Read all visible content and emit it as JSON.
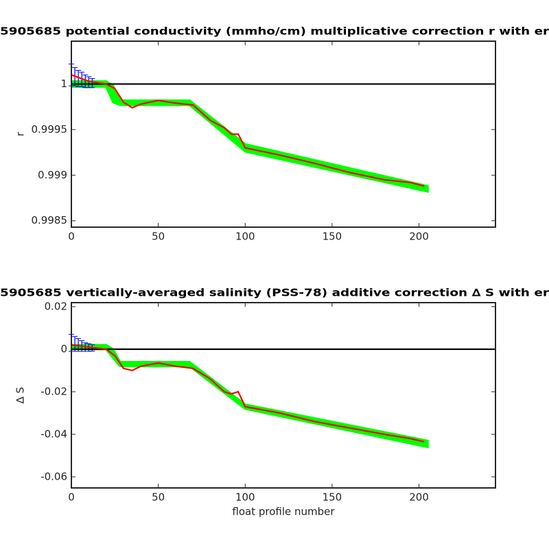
{
  "chart_data": [
    {
      "type": "line",
      "title": "5905685 potential conductivity (mmho/cm) multiplicative correction r with er",
      "ylabel": "r",
      "xlim": [
        0,
        244
      ],
      "xticks": [
        0,
        50,
        100,
        150,
        200
      ],
      "ylim": [
        0.99843,
        1.00047
      ],
      "yticks": [
        0.9985,
        0.999,
        0.9995,
        1
      ],
      "reference": 1,
      "reference_color": "#000000",
      "band": {
        "color": "#00ff00",
        "x": [
          0,
          20,
          24,
          28,
          68,
          100,
          205
        ],
        "upper": [
          1.00003,
          1.00003,
          0.99998,
          0.99982,
          0.99982,
          0.99934,
          0.99888
        ],
        "lower": [
          0.99997,
          0.99997,
          0.9998,
          0.99977,
          0.99977,
          0.99926,
          0.99882
        ]
      },
      "errorbars": {
        "color": "#0000ff",
        "x": [
          0,
          2,
          4,
          6,
          8,
          10,
          12
        ],
        "values": [
          1.0001,
          1.00008,
          1.00006,
          1.00005,
          1.00003,
          1.00002,
          1.00001
        ],
        "errors": [
          0.00012,
          0.0001,
          9e-05,
          8e-05,
          7e-05,
          6e-05,
          5e-05
        ]
      },
      "line": {
        "color": "#ff0000",
        "x": [
          0,
          10,
          20,
          25,
          30,
          35,
          40,
          50,
          60,
          70,
          80,
          88,
          92,
          96,
          100,
          120,
          140,
          160,
          180,
          195,
          203
        ],
        "values": [
          1.0001,
          1.00003,
          1.0,
          0.99995,
          0.9998,
          0.99974,
          0.99978,
          0.99982,
          0.99979,
          0.99977,
          0.9996,
          0.99952,
          0.99945,
          0.99945,
          0.9993,
          0.99922,
          0.99913,
          0.99903,
          0.99895,
          0.99892,
          0.99888
        ]
      }
    },
    {
      "type": "line",
      "title": "5905685 vertically-averaged salinity (PSS-78) additive correction ∆ S with er",
      "ylabel": "∆ S",
      "xlabel": "float profile number",
      "xlim": [
        0,
        244
      ],
      "xticks": [
        0,
        50,
        100,
        150,
        200
      ],
      "ylim": [
        -0.0652,
        0.0219
      ],
      "yticks": [
        -0.06,
        -0.04,
        -0.02,
        0,
        0.02
      ],
      "reference": 0,
      "reference_color": "#000000",
      "band": {
        "color": "#00ff00",
        "x": [
          0,
          20,
          24,
          28,
          68,
          100,
          205
        ],
        "upper": [
          0.002,
          0.002,
          0.0,
          -0.006,
          -0.006,
          -0.026,
          -0.043
        ],
        "lower": [
          0,
          0,
          -0.004,
          -0.008,
          -0.008,
          -0.028,
          -0.046
        ]
      },
      "errorbars": {
        "color": "#0000ff",
        "x": [
          0,
          2,
          4,
          6,
          8,
          10,
          12
        ],
        "values": [
          0.003,
          0.0025,
          0.002,
          0.0015,
          0.001,
          0.0008,
          0.0006
        ],
        "errors": [
          0.004,
          0.0035,
          0.003,
          0.0025,
          0.002,
          0.0018,
          0.0015
        ]
      },
      "line": {
        "color": "#ff0000",
        "x": [
          0,
          10,
          20,
          25,
          30,
          35,
          40,
          50,
          60,
          70,
          80,
          88,
          92,
          96,
          100,
          120,
          140,
          160,
          180,
          195,
          203
        ],
        "values": [
          0.002,
          0.001,
          0,
          -0.003,
          -0.009,
          -0.01,
          -0.008,
          -0.0065,
          -0.008,
          -0.009,
          -0.014,
          -0.02,
          -0.021,
          -0.02,
          -0.027,
          -0.03,
          -0.034,
          -0.037,
          -0.04,
          -0.042,
          -0.0435
        ]
      }
    }
  ]
}
